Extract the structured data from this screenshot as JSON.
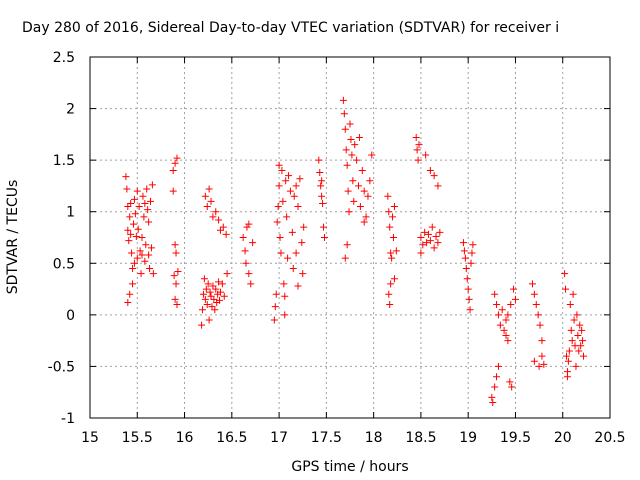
{
  "chart_data": {
    "type": "scatter",
    "title": "Day 280 of 2016, Sidereal Day-to-day VTEC variation (SDTVAR) for receiver i",
    "xlabel": "GPS time / hours",
    "ylabel": "SDTVAR / TECUs",
    "xlim": [
      15,
      20.5
    ],
    "ylim": [
      -1,
      2.5
    ],
    "xticks": [
      15,
      15.5,
      16,
      16.5,
      17,
      17.5,
      18,
      18.5,
      19,
      19.5,
      20,
      20.5
    ],
    "yticks": [
      -1,
      -0.5,
      0,
      0.5,
      1,
      1.5,
      2,
      2.5
    ],
    "xtick_labels": [
      "15",
      "15.5",
      "16",
      "16.5",
      "17",
      "17.5",
      "18",
      "18.5",
      "19",
      "19.5",
      "20",
      "20.5"
    ],
    "ytick_labels": [
      "-1",
      "-0.5",
      "0",
      "0.5",
      "1",
      "1.5",
      "2",
      "2.5"
    ],
    "grid": true,
    "marker": "+",
    "color": "#ff0000",
    "series": [
      {
        "name": "SDTVAR",
        "points": [
          [
            15.38,
            1.34
          ],
          [
            15.39,
            1.22
          ],
          [
            15.4,
            1.05
          ],
          [
            15.4,
            0.82
          ],
          [
            15.41,
            0.72
          ],
          [
            15.42,
            0.95
          ],
          [
            15.43,
            1.08
          ],
          [
            15.44,
            0.6
          ],
          [
            15.45,
            0.45
          ],
          [
            15.45,
            0.3
          ],
          [
            15.46,
            0.88
          ],
          [
            15.47,
            1.12
          ],
          [
            15.48,
            0.98
          ],
          [
            15.49,
            0.76
          ],
          [
            15.5,
            0.55
          ],
          [
            15.5,
            1.2
          ],
          [
            15.52,
            1.05
          ],
          [
            15.53,
            0.62
          ],
          [
            15.54,
            0.4
          ],
          [
            15.55,
            0.75
          ],
          [
            15.56,
            1.15
          ],
          [
            15.57,
            0.95
          ],
          [
            15.58,
            0.52
          ],
          [
            15.59,
            0.68
          ],
          [
            15.6,
            1.22
          ],
          [
            15.61,
            1.02
          ],
          [
            15.62,
            0.58
          ],
          [
            15.63,
            0.45
          ],
          [
            15.64,
            1.1
          ],
          [
            15.65,
            0.65
          ],
          [
            15.66,
            1.26
          ],
          [
            15.67,
            0.4
          ],
          [
            15.4,
            0.12
          ],
          [
            15.42,
            0.2
          ],
          [
            15.43,
            0.78
          ],
          [
            15.47,
            0.5
          ],
          [
            15.51,
            0.83
          ],
          [
            15.55,
            0.58
          ],
          [
            15.58,
            1.08
          ],
          [
            15.62,
            0.9
          ],
          [
            15.88,
            1.4
          ],
          [
            15.9,
            1.47
          ],
          [
            15.92,
            1.52
          ],
          [
            15.88,
            1.2
          ],
          [
            15.9,
            0.68
          ],
          [
            15.91,
            0.6
          ],
          [
            15.89,
            0.38
          ],
          [
            15.91,
            0.3
          ],
          [
            15.9,
            0.15
          ],
          [
            15.92,
            0.1
          ],
          [
            15.93,
            0.42
          ],
          [
            16.18,
            -0.1
          ],
          [
            16.19,
            0.05
          ],
          [
            16.2,
            0.2
          ],
          [
            16.21,
            0.35
          ],
          [
            16.22,
            0.15
          ],
          [
            16.23,
            0.25
          ],
          [
            16.24,
            0.1
          ],
          [
            16.25,
            0.3
          ],
          [
            16.26,
            -0.05
          ],
          [
            16.27,
            0.22
          ],
          [
            16.28,
            0.18
          ],
          [
            16.29,
            0.08
          ],
          [
            16.3,
            0.28
          ],
          [
            16.31,
            0.15
          ],
          [
            16.32,
            0.05
          ],
          [
            16.33,
            0.25
          ],
          [
            16.34,
            0.12
          ],
          [
            16.35,
            0.2
          ],
          [
            16.36,
            0.32
          ],
          [
            16.37,
            0.14
          ],
          [
            16.38,
            0.22
          ],
          [
            16.4,
            0.3
          ],
          [
            16.42,
            0.18
          ],
          [
            16.45,
            0.4
          ],
          [
            16.22,
            1.15
          ],
          [
            16.24,
            1.05
          ],
          [
            16.26,
            1.22
          ],
          [
            16.28,
            1.1
          ],
          [
            16.3,
            0.95
          ],
          [
            16.33,
            1.0
          ],
          [
            16.36,
            0.92
          ],
          [
            16.38,
            0.82
          ],
          [
            16.41,
            0.85
          ],
          [
            16.44,
            0.78
          ],
          [
            16.62,
            0.75
          ],
          [
            16.64,
            0.62
          ],
          [
            16.65,
            0.5
          ],
          [
            16.66,
            0.85
          ],
          [
            16.68,
            0.4
          ],
          [
            16.7,
            0.3
          ],
          [
            16.72,
            0.7
          ],
          [
            16.68,
            0.88
          ],
          [
            16.95,
            -0.05
          ],
          [
            16.96,
            0.08
          ],
          [
            16.97,
            0.2
          ],
          [
            16.98,
            0.9
          ],
          [
            16.99,
            1.05
          ],
          [
            17.0,
            1.25
          ],
          [
            17.01,
            0.75
          ],
          [
            17.02,
            0.6
          ],
          [
            17.03,
            1.4
          ],
          [
            17.04,
            1.1
          ],
          [
            17.05,
            0.3
          ],
          [
            17.06,
            0.18
          ],
          [
            17.07,
            1.3
          ],
          [
            17.08,
            0.95
          ],
          [
            17.09,
            0.55
          ],
          [
            17.1,
            1.35
          ],
          [
            17.12,
            1.2
          ],
          [
            17.14,
            0.8
          ],
          [
            17.16,
            1.15
          ],
          [
            17.18,
            1.25
          ],
          [
            17.2,
            1.05
          ],
          [
            17.22,
            1.32
          ],
          [
            17.24,
            0.7
          ],
          [
            17.26,
            0.85
          ],
          [
            17.15,
            0.45
          ],
          [
            17.18,
            0.6
          ],
          [
            17.2,
            0.28
          ],
          [
            17.25,
            0.4
          ],
          [
            17.0,
            1.45
          ],
          [
            17.06,
            0.0
          ],
          [
            17.42,
            1.5
          ],
          [
            17.43,
            1.38
          ],
          [
            17.44,
            1.25
          ],
          [
            17.45,
            1.15
          ],
          [
            17.46,
            1.08
          ],
          [
            17.47,
            0.85
          ],
          [
            17.48,
            0.75
          ],
          [
            17.45,
            1.3
          ],
          [
            17.68,
            2.08
          ],
          [
            17.69,
            1.95
          ],
          [
            17.7,
            1.8
          ],
          [
            17.71,
            1.6
          ],
          [
            17.72,
            1.45
          ],
          [
            17.73,
            1.2
          ],
          [
            17.74,
            1.0
          ],
          [
            17.75,
            1.85
          ],
          [
            17.76,
            1.7
          ],
          [
            17.77,
            1.55
          ],
          [
            17.78,
            1.3
          ],
          [
            17.79,
            1.1
          ],
          [
            17.8,
            1.65
          ],
          [
            17.82,
            1.5
          ],
          [
            17.84,
            1.25
          ],
          [
            17.86,
            1.05
          ],
          [
            17.88,
            1.4
          ],
          [
            17.9,
            1.2
          ],
          [
            17.92,
            0.95
          ],
          [
            17.94,
            1.15
          ],
          [
            17.96,
            1.3
          ],
          [
            17.98,
            1.55
          ],
          [
            17.7,
            0.55
          ],
          [
            17.72,
            0.68
          ],
          [
            17.85,
            1.72
          ],
          [
            17.9,
            0.9
          ],
          [
            18.15,
            1.15
          ],
          [
            18.16,
            1.0
          ],
          [
            18.17,
            0.85
          ],
          [
            18.18,
            0.6
          ],
          [
            18.19,
            0.55
          ],
          [
            18.2,
            0.95
          ],
          [
            18.21,
            0.75
          ],
          [
            18.22,
            1.05
          ],
          [
            18.16,
            0.2
          ],
          [
            18.17,
            0.1
          ],
          [
            18.18,
            0.3
          ],
          [
            18.22,
            0.35
          ],
          [
            18.24,
            0.62
          ],
          [
            18.45,
            1.72
          ],
          [
            18.46,
            1.6
          ],
          [
            18.47,
            1.5
          ],
          [
            18.48,
            1.65
          ],
          [
            18.5,
            0.75
          ],
          [
            18.52,
            0.68
          ],
          [
            18.54,
            0.8
          ],
          [
            18.56,
            0.7
          ],
          [
            18.58,
            0.78
          ],
          [
            18.6,
            0.72
          ],
          [
            18.62,
            0.85
          ],
          [
            18.64,
            0.65
          ],
          [
            18.66,
            0.76
          ],
          [
            18.68,
            0.7
          ],
          [
            18.7,
            0.8
          ],
          [
            18.55,
            1.55
          ],
          [
            18.6,
            1.4
          ],
          [
            18.64,
            1.35
          ],
          [
            18.68,
            1.25
          ],
          [
            18.5,
            0.6
          ],
          [
            18.95,
            0.7
          ],
          [
            18.96,
            0.62
          ],
          [
            18.97,
            0.55
          ],
          [
            18.98,
            0.45
          ],
          [
            18.99,
            0.35
          ],
          [
            19.0,
            0.25
          ],
          [
            19.01,
            0.15
          ],
          [
            19.02,
            0.05
          ],
          [
            19.03,
            0.5
          ],
          [
            19.04,
            0.6
          ],
          [
            19.05,
            0.68
          ],
          [
            19.25,
            -0.8
          ],
          [
            19.26,
            -0.85
          ],
          [
            19.28,
            -0.7
          ],
          [
            19.3,
            -0.6
          ],
          [
            19.32,
            -0.5
          ],
          [
            19.28,
            0.2
          ],
          [
            19.3,
            0.1
          ],
          [
            19.32,
            0.0
          ],
          [
            19.34,
            -0.1
          ],
          [
            19.36,
            0.05
          ],
          [
            19.38,
            -0.15
          ],
          [
            19.4,
            -0.2
          ],
          [
            19.42,
            -0.25
          ],
          [
            19.44,
            -0.65
          ],
          [
            19.46,
            -0.7
          ],
          [
            19.48,
            0.25
          ],
          [
            19.5,
            0.15
          ],
          [
            19.45,
            0.1
          ],
          [
            19.42,
            0.0
          ],
          [
            19.4,
            -0.05
          ],
          [
            19.68,
            0.3
          ],
          [
            19.7,
            0.2
          ],
          [
            19.72,
            0.1
          ],
          [
            19.74,
            0.0
          ],
          [
            19.76,
            -0.1
          ],
          [
            19.78,
            -0.25
          ],
          [
            19.7,
            -0.45
          ],
          [
            19.75,
            -0.5
          ],
          [
            19.78,
            -0.4
          ],
          [
            19.8,
            -0.48
          ],
          [
            20.02,
            0.4
          ],
          [
            20.03,
            0.25
          ],
          [
            20.04,
            -0.4
          ],
          [
            20.05,
            -0.55
          ],
          [
            20.06,
            -0.45
          ],
          [
            20.07,
            -0.35
          ],
          [
            20.08,
            0.1
          ],
          [
            20.09,
            -0.15
          ],
          [
            20.1,
            -0.25
          ],
          [
            20.11,
            0.2
          ],
          [
            20.12,
            -0.05
          ],
          [
            20.13,
            -0.3
          ],
          [
            20.14,
            -0.5
          ],
          [
            20.15,
            0.0
          ],
          [
            20.16,
            -0.2
          ],
          [
            20.17,
            -0.35
          ],
          [
            20.18,
            -0.1
          ],
          [
            20.19,
            -0.3
          ],
          [
            20.2,
            -0.15
          ],
          [
            20.21,
            -0.25
          ],
          [
            20.22,
            -0.4
          ],
          [
            20.05,
            -0.6
          ]
        ]
      }
    ]
  }
}
